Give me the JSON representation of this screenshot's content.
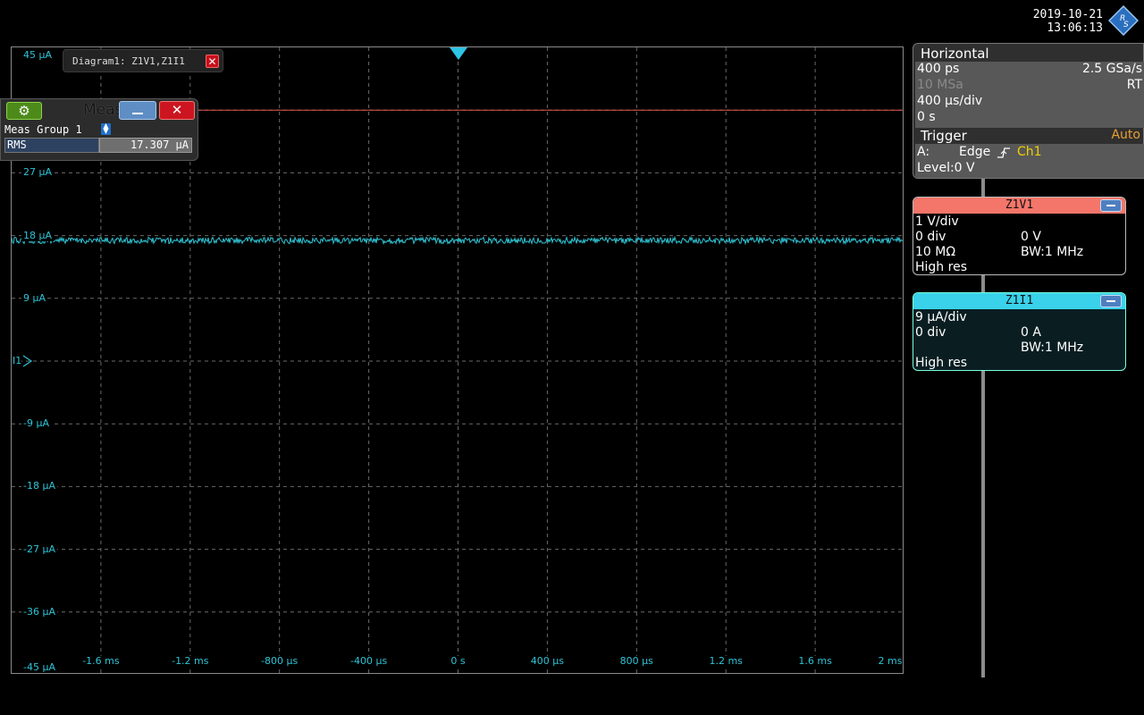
{
  "datetime": {
    "date": "2019-10-21",
    "time": "13:06:13"
  },
  "logo": {
    "name": "R&S"
  },
  "diagram": {
    "tab_label": "Diagram1: Z1V1,Z1I1",
    "close_symbol": "✕",
    "y_labels": [
      "45 µA",
      "27 µA",
      "18 µA",
      "9 µA",
      "-9 µA",
      "-18 µA",
      "-27 µA",
      "-36 µA",
      "-45 µA"
    ],
    "x_labels": [
      "-1.6 ms",
      "-1.2 ms",
      "-800 µs",
      "-400 µs",
      "0 s",
      "400 µs",
      "800 µs",
      "1.2 ms",
      "1.6 ms",
      "2 ms"
    ],
    "ref_marker": "I1",
    "traces": [
      {
        "name": "Z1V1",
        "color": "#e0584c",
        "level_uA": 36
      },
      {
        "name": "Z1I1",
        "color": "#2fc4d4",
        "level_uA": 17.3
      }
    ]
  },
  "meas": {
    "title": "Meas Res",
    "gear_symbol": "⚙",
    "close_symbol": "✕",
    "group": "Meas Group 1",
    "rows": [
      {
        "name": "RMS",
        "value": "17.307 µA"
      }
    ]
  },
  "horizontal": {
    "title": "Horizontal",
    "resolution": "400 ps",
    "sample_rate": "2.5 GSa/s",
    "record_length": "10 MSa",
    "mode": "RT",
    "scale": "400 µs/div",
    "position": "0 s"
  },
  "trigger": {
    "title": "Trigger",
    "mode": "Auto",
    "event": "A:",
    "type": "Edge",
    "source": "Ch1",
    "level": "Level:0 V"
  },
  "channels": {
    "z1v1": {
      "name": "Z1V1",
      "scale": "1 V/div",
      "offset_div": "0 div",
      "offset": "0 V",
      "impedance": "10 MΩ",
      "bw": "BW:1 MHz",
      "mode": "High res"
    },
    "z1i1": {
      "name": "Z1I1",
      "scale": "9 µA/div",
      "offset_div": "0 div",
      "offset": "0 A",
      "bw": "BW:1 MHz",
      "mode": "High res"
    }
  }
}
